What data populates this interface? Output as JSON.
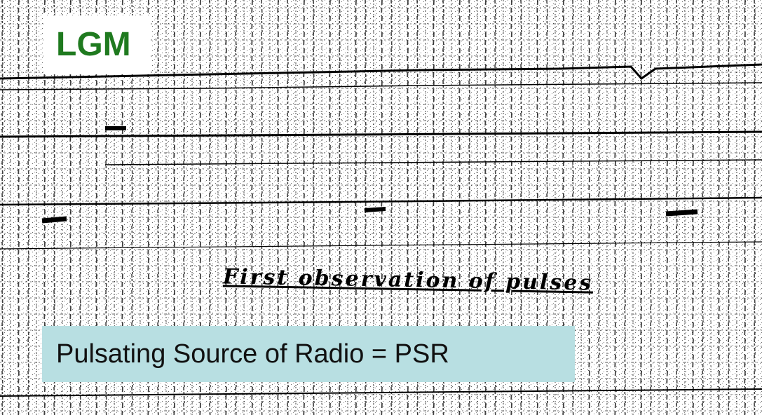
{
  "slide": {
    "badge": "LGM",
    "caption": "Pulsating Source of Radio = PSR",
    "handwritten_note": "First observation of pulses"
  }
}
